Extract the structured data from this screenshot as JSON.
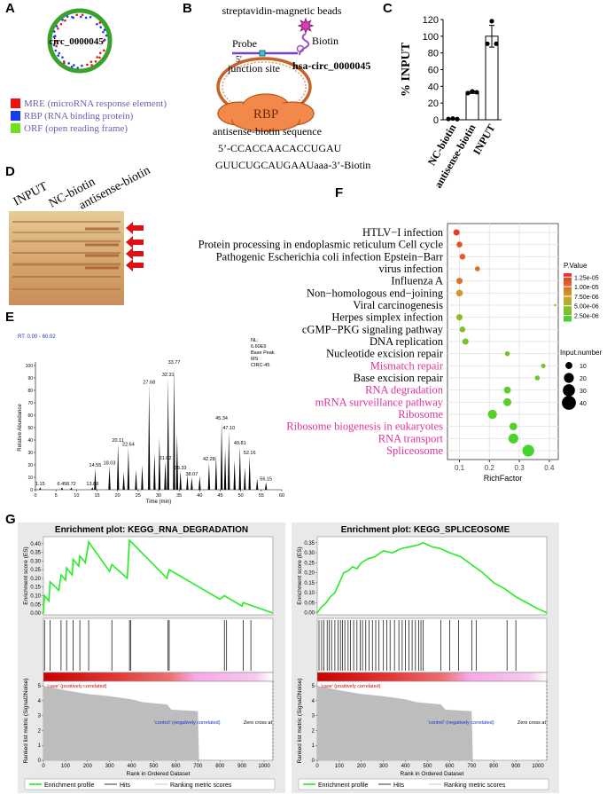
{
  "panel_labels": [
    "A",
    "B",
    "C",
    "D",
    "E",
    "F",
    "G"
  ],
  "diagram_a": {
    "circle_label": "circ_0000045",
    "legend": [
      {
        "label": "MRE (microRNA response element)",
        "color": "#ee1111"
      },
      {
        "label": "RBP (RNA binding protein)",
        "color": "#1a3cf0"
      },
      {
        "label": "ORF (open reading frame)",
        "color": "#6fe01e"
      }
    ]
  },
  "diagram_b": {
    "bead_label": "streptavidin-magnetic beads",
    "biotin": "Biotin",
    "probe": "Probe",
    "five_prime": "5'",
    "junction": "junction site",
    "circ_label": "hsa-circ_0000045",
    "rbp": "RBP",
    "sequence_title": "antisense-biotin sequence",
    "sequence": [
      "5’-CCACCAACACCUGAU",
      "GUUCUGCAUGAAUaaa-3’-Biotin"
    ]
  },
  "gel_d": {
    "lanes": [
      "INPUT",
      "NC-biotin",
      "antisense-biotin"
    ]
  },
  "chart_data": [
    {
      "type": "bar",
      "ylabel": "% INPUT",
      "categories": [
        "NC-biotin",
        "antisense-biotin",
        "INPUT"
      ],
      "values": [
        1,
        33,
        100
      ],
      "errors": [
        0.5,
        1.5,
        13
      ],
      "points": [
        [
          1,
          1.5,
          0.8
        ],
        [
          32,
          34,
          33
        ],
        [
          91,
          118,
          91
        ]
      ],
      "color": "#ffffff",
      "ylim": [
        0,
        120
      ],
      "yticks": [
        0,
        20,
        40,
        60,
        80,
        100,
        120
      ]
    },
    {
      "type": "spectrum",
      "info": "RT: 0.00 - 60.02",
      "notes": [
        "NL:",
        "6.60E9",
        "Base Peak",
        "MS",
        "CIRC-45"
      ],
      "xlabel": "Time (min)",
      "ylabel": "Relative Abundance",
      "x": [
        1.15,
        6.45,
        8.72,
        13.88,
        14.55,
        18.03,
        20.11,
        21.5,
        22.64,
        24.5,
        26,
        27.68,
        29,
        30.2,
        31.62,
        32.31,
        33.77,
        34.5,
        35.33,
        37,
        38.07,
        40,
        42.28,
        44,
        45.34,
        46.2,
        47.1,
        48.5,
        49.81,
        51,
        52.16,
        54,
        56.15
      ],
      "peak_labels": [
        "1.15",
        "6.45",
        "8.72",
        "13.88",
        "14.55",
        "18.03",
        "20.11",
        null,
        "22.64",
        null,
        null,
        "27.68",
        null,
        null,
        "31.62",
        "32.31",
        "33.77",
        null,
        "35.33",
        null,
        "38.07",
        null,
        "42.28",
        null,
        "45.34",
        null,
        "47.10",
        null,
        "49.81",
        null,
        "52.16",
        null,
        "56.15"
      ],
      "values": [
        2,
        2,
        2,
        2,
        17,
        19,
        37,
        14,
        34,
        16,
        20,
        84,
        30,
        42,
        23,
        90,
        100,
        45,
        15,
        12,
        10,
        11,
        22,
        28,
        55,
        33,
        47,
        24,
        35,
        18,
        27,
        9,
        6
      ],
      "color": "#000000",
      "xlim": [
        0,
        60
      ],
      "xticks": [
        0,
        5,
        10,
        15,
        20,
        25,
        30,
        35,
        40,
        45,
        50,
        55,
        60
      ],
      "ylim": [
        0,
        100
      ],
      "yticks": [
        0,
        10,
        20,
        30,
        40,
        50,
        60,
        70,
        80,
        90,
        100
      ]
    },
    {
      "type": "bubble",
      "categories": [
        "HTLV−I infection",
        "Protein processing in endoplasmic reticulum Cell cycle",
        "Pathogenic Escherichia coli infection Epstein−Barr",
        "virus infection",
        "Influenza A",
        "Non−homologous end−joining",
        "Viral carcinogenesis",
        "Herpes simplex infection",
        "cGMP−PKG signaling pathway",
        "DNA replication",
        "Nucleotide excision repair",
        "Mismatch repair",
        "Base excision repair",
        "RNA degradation",
        "mRNA surveillance pathway",
        "Ribosome",
        "Ribosome biogenesis in eukaryotes",
        "RNA transport",
        "Spliceosome"
      ],
      "category_colors": [
        "#000000",
        "#000000",
        "#000000",
        "#000000",
        "#000000",
        "#000000",
        "#000000",
        "#000000",
        "#000000",
        "#000000",
        "#000000",
        "#e0339b",
        "#000000",
        "#e0339b",
        "#e0339b",
        "#e0339b",
        "#e0339b",
        "#e0339b",
        "#e0339b"
      ],
      "x": [
        0.09,
        0.1,
        0.11,
        0.16,
        0.1,
        0.1,
        0.42,
        0.1,
        0.11,
        0.12,
        0.26,
        0.38,
        0.36,
        0.26,
        0.26,
        0.21,
        0.28,
        0.28,
        0.33
      ],
      "sizes": [
        8,
        7,
        7,
        5,
        8,
        9,
        1,
        8,
        7,
        8,
        5,
        4,
        5,
        10,
        13,
        17,
        12,
        20,
        28
      ],
      "pvalues": [
        1.3e-05,
        1.15e-05,
        1.1e-05,
        1.05e-05,
        1e-05,
        8e-06,
        5.5e-06,
        4.5e-06,
        4e-06,
        3.5e-06,
        3e-06,
        2.8e-06,
        2.6e-06,
        2.4e-06,
        2.2e-06,
        2e-06,
        1.8e-06,
        1.6e-06,
        1.2e-06
      ],
      "xlabel": "RichFactor",
      "xlim": [
        0.06,
        0.43
      ],
      "xticks": [
        0.1,
        0.2,
        0.3,
        0.4
      ],
      "grid": true,
      "color_legend_title": "P.Value",
      "clim": [
        1e-06,
        1.35e-05
      ],
      "colors": [
        "#3fd62a",
        "#c9a82b",
        "#ec2f26"
      ],
      "color_ticks": [
        {
          "value": 1.25e-05,
          "label": "1.25e-05"
        },
        {
          "value": 1e-05,
          "label": "1.00e-05"
        },
        {
          "value": 7.5e-06,
          "label": "7.50e-06"
        },
        {
          "value": 5e-06,
          "label": "5.00e-06"
        },
        {
          "value": 2.5e-06,
          "label": "2.50e-06"
        }
      ],
      "size_legend_title": "Input.number",
      "size_ticks": [
        10,
        20,
        30,
        40
      ]
    },
    {
      "type": "gsea",
      "title": "Enrichment plot: KEGG_RNA_DEGRADATION",
      "es_ylabel": "Enrichment score (ES)",
      "metric_ylabel": "Ranked list metric (Signal2Noise)",
      "xlabel": "Rank in Ordered Dataset",
      "x": [
        0,
        5,
        25,
        30,
        70,
        80,
        100,
        105,
        130,
        135,
        160,
        165,
        190,
        205,
        300,
        310,
        380,
        390,
        560,
        565,
        570,
        800,
        820,
        900,
        905,
        1040
      ],
      "values": [
        0,
        0.1,
        0.07,
        0.18,
        0.13,
        0.22,
        0.19,
        0.26,
        0.22,
        0.31,
        0.27,
        0.33,
        0.29,
        0.41,
        0.24,
        0.28,
        0.2,
        0.42,
        0.2,
        0.23,
        0.25,
        0.08,
        0.1,
        0.04,
        0.06,
        0
      ],
      "hits": [
        5,
        30,
        80,
        105,
        135,
        165,
        205,
        310,
        390,
        395,
        565,
        570,
        820,
        830,
        905,
        940
      ],
      "metric_x": [
        0,
        50,
        100,
        200,
        300,
        400,
        450,
        560,
        580,
        700,
        705,
        1040
      ],
      "metric_values": [
        5,
        4.85,
        4.7,
        4.45,
        4.3,
        4.1,
        3.9,
        3.75,
        3.4,
        3.3,
        0.05,
        0
      ],
      "color": "#22ee22",
      "xlim": [
        0,
        1040
      ],
      "xticks": [
        0,
        100,
        200,
        300,
        400,
        500,
        600,
        700,
        800,
        900,
        1000
      ],
      "ylim": [
        -0.01,
        0.44
      ],
      "yticks": [
        {
          "value": 0,
          "label": "0.00"
        },
        {
          "value": 0.05,
          "label": "0.05"
        },
        {
          "value": 0.1,
          "label": "0.10"
        },
        {
          "value": 0.15,
          "label": "0.15"
        },
        {
          "value": 0.2,
          "label": "0.20"
        },
        {
          "value": 0.25,
          "label": "0.25"
        },
        {
          "value": 0.3,
          "label": "0.30"
        },
        {
          "value": 0.35,
          "label": "0.35"
        },
        {
          "value": 0.4,
          "label": "0.40"
        }
      ],
      "metric_ylim": [
        0,
        5.3
      ],
      "metric_yticks": [
        0,
        1,
        2,
        3,
        4,
        5
      ],
      "pos_label": "'case' (positively correlated)",
      "neg_label": "'control' (negatively correlated)",
      "zero_cross_label": "Zero cross at",
      "legend": [
        "Enrichment profile",
        "Hits",
        "Ranking metric scores"
      ]
    },
    {
      "type": "gsea",
      "title": "Enrichment plot: KEGG_SPLICEOSOME",
      "es_ylabel": "Enrichment score (ES)",
      "metric_ylabel": "Ranked list metric (Signal2Noise)",
      "xlabel": "Rank in Ordered Dataset",
      "x": [
        0,
        20,
        40,
        60,
        80,
        100,
        120,
        140,
        160,
        180,
        200,
        230,
        260,
        300,
        340,
        380,
        420,
        460,
        480,
        520,
        560,
        600,
        650,
        700,
        750,
        800,
        850,
        900,
        950,
        1000,
        1040
      ],
      "values": [
        0,
        0.03,
        0.05,
        0.08,
        0.1,
        0.15,
        0.2,
        0.21,
        0.23,
        0.22,
        0.25,
        0.27,
        0.28,
        0.31,
        0.3,
        0.32,
        0.33,
        0.34,
        0.35,
        0.33,
        0.32,
        0.3,
        0.28,
        0.24,
        0.2,
        0.15,
        0.12,
        0.08,
        0.05,
        0.02,
        0
      ],
      "hits": [
        8,
        20,
        30,
        45,
        55,
        65,
        80,
        95,
        105,
        115,
        125,
        140,
        150,
        165,
        180,
        195,
        205,
        220,
        235,
        250,
        265,
        280,
        300,
        315,
        330,
        350,
        370,
        385,
        400,
        415,
        430,
        445,
        460,
        470,
        480,
        560,
        600,
        640,
        700,
        720,
        860,
        900
      ],
      "metric_x": [
        0,
        50,
        100,
        200,
        300,
        400,
        450,
        560,
        580,
        700,
        705,
        1040
      ],
      "metric_values": [
        5,
        4.85,
        4.7,
        4.45,
        4.3,
        4.1,
        3.9,
        3.75,
        3.4,
        3.3,
        0.05,
        0
      ],
      "color": "#22ee22",
      "xlim": [
        0,
        1040
      ],
      "xticks": [
        0,
        100,
        200,
        300,
        400,
        500,
        600,
        700,
        800,
        900,
        1000
      ],
      "ylim": [
        -0.01,
        0.38
      ],
      "yticks": [
        {
          "value": 0,
          "label": "0.00"
        },
        {
          "value": 0.05,
          "label": "0.05"
        },
        {
          "value": 0.1,
          "label": "0.10"
        },
        {
          "value": 0.15,
          "label": "0.15"
        },
        {
          "value": 0.2,
          "label": "0.20"
        },
        {
          "value": 0.25,
          "label": "0.25"
        },
        {
          "value": 0.3,
          "label": "0.30"
        },
        {
          "value": 0.35,
          "label": "0.35"
        }
      ],
      "metric_ylim": [
        0,
        5.3
      ],
      "metric_yticks": [
        0,
        1,
        2,
        3,
        4,
        5
      ],
      "pos_label": "'case' (positively correlated)",
      "neg_label": "'control' (negatively correlated)",
      "zero_cross_label": "Zero cross at",
      "legend": [
        "Enrichment profile",
        "Hits",
        "Ranking metric scores"
      ]
    }
  ]
}
